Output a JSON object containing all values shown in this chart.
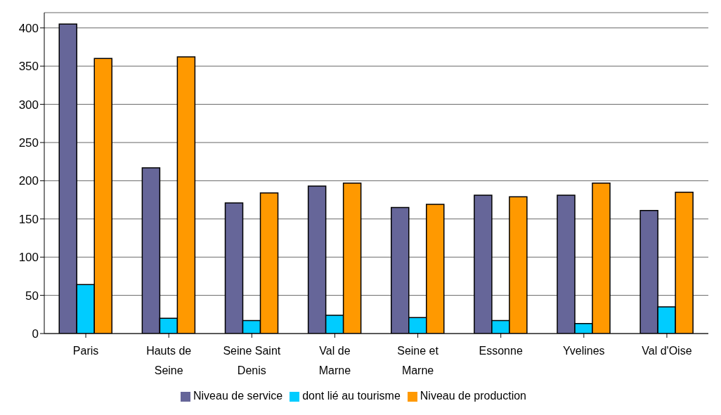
{
  "chart_data": {
    "type": "bar",
    "categories": [
      "Paris",
      "Hauts de Seine",
      "Seine Saint Denis",
      "Val de Marne",
      "Seine et Marne",
      "Essonne",
      "Yvelines",
      "Val d'Oise"
    ],
    "series": [
      {
        "name": "Niveau de service",
        "color": "#666699",
        "values": [
          405,
          217,
          171,
          193,
          165,
          181,
          181,
          161
        ]
      },
      {
        "name": "dont lié au tourisme",
        "color": "#00ccff",
        "values": [
          64,
          20,
          17,
          24,
          21,
          17,
          13,
          35
        ]
      },
      {
        "name": "Niveau de production",
        "color": "#ff9900",
        "values": [
          360,
          362,
          184,
          197,
          169,
          179,
          197,
          185
        ]
      }
    ],
    "ylim": [
      0,
      420
    ],
    "yticks": [
      0,
      50,
      100,
      150,
      200,
      250,
      300,
      350,
      400
    ],
    "grid": "y",
    "legend": "bottom"
  }
}
